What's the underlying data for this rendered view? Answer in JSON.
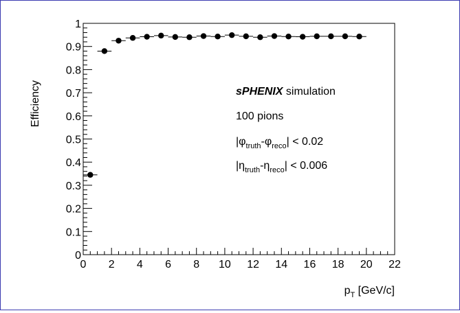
{
  "chart_data": {
    "type": "scatter",
    "ylabel": "Efficiency",
    "xlabel": "p",
    "xlabel_sub": "T",
    "xlabel_rest": " [GeV/c]",
    "xlim": [
      0,
      22
    ],
    "ylim": [
      0,
      1
    ],
    "x_ticks": [
      "0",
      "2",
      "4",
      "6",
      "8",
      "10",
      "12",
      "14",
      "16",
      "18",
      "20",
      "22"
    ],
    "y_ticks": [
      "0",
      "0.1",
      "0.2",
      "0.3",
      "0.4",
      "0.5",
      "0.6",
      "0.7",
      "0.8",
      "0.9",
      "1"
    ],
    "series": [
      {
        "marker": "filled-circle",
        "color": "#000000",
        "x": [
          0.5,
          1.5,
          2.5,
          3.5,
          4.5,
          5.5,
          6.5,
          7.5,
          8.5,
          9.5,
          10.5,
          11.5,
          12.5,
          13.5,
          14.5,
          15.5,
          16.5,
          17.5,
          18.5,
          19.5
        ],
        "y": [
          0.345,
          0.88,
          0.925,
          0.937,
          0.942,
          0.947,
          0.941,
          0.94,
          0.945,
          0.943,
          0.949,
          0.944,
          0.94,
          0.945,
          0.943,
          0.942,
          0.944,
          0.944,
          0.944,
          0.943
        ],
        "xerr": 0.5
      }
    ],
    "annotations": {
      "brand": "sPHENIX",
      "simulation": " simulation",
      "pions": "100 pions",
      "cut_phi": {
        "sym": "φ",
        "sub1": "truth",
        "dash": "-",
        "sub2": "reco",
        "rest": " < 0.02"
      },
      "cut_eta": {
        "sym": "η",
        "sub1": "truth",
        "dash": "-",
        "sub2": "reco",
        "rest": " < 0.006"
      }
    }
  }
}
